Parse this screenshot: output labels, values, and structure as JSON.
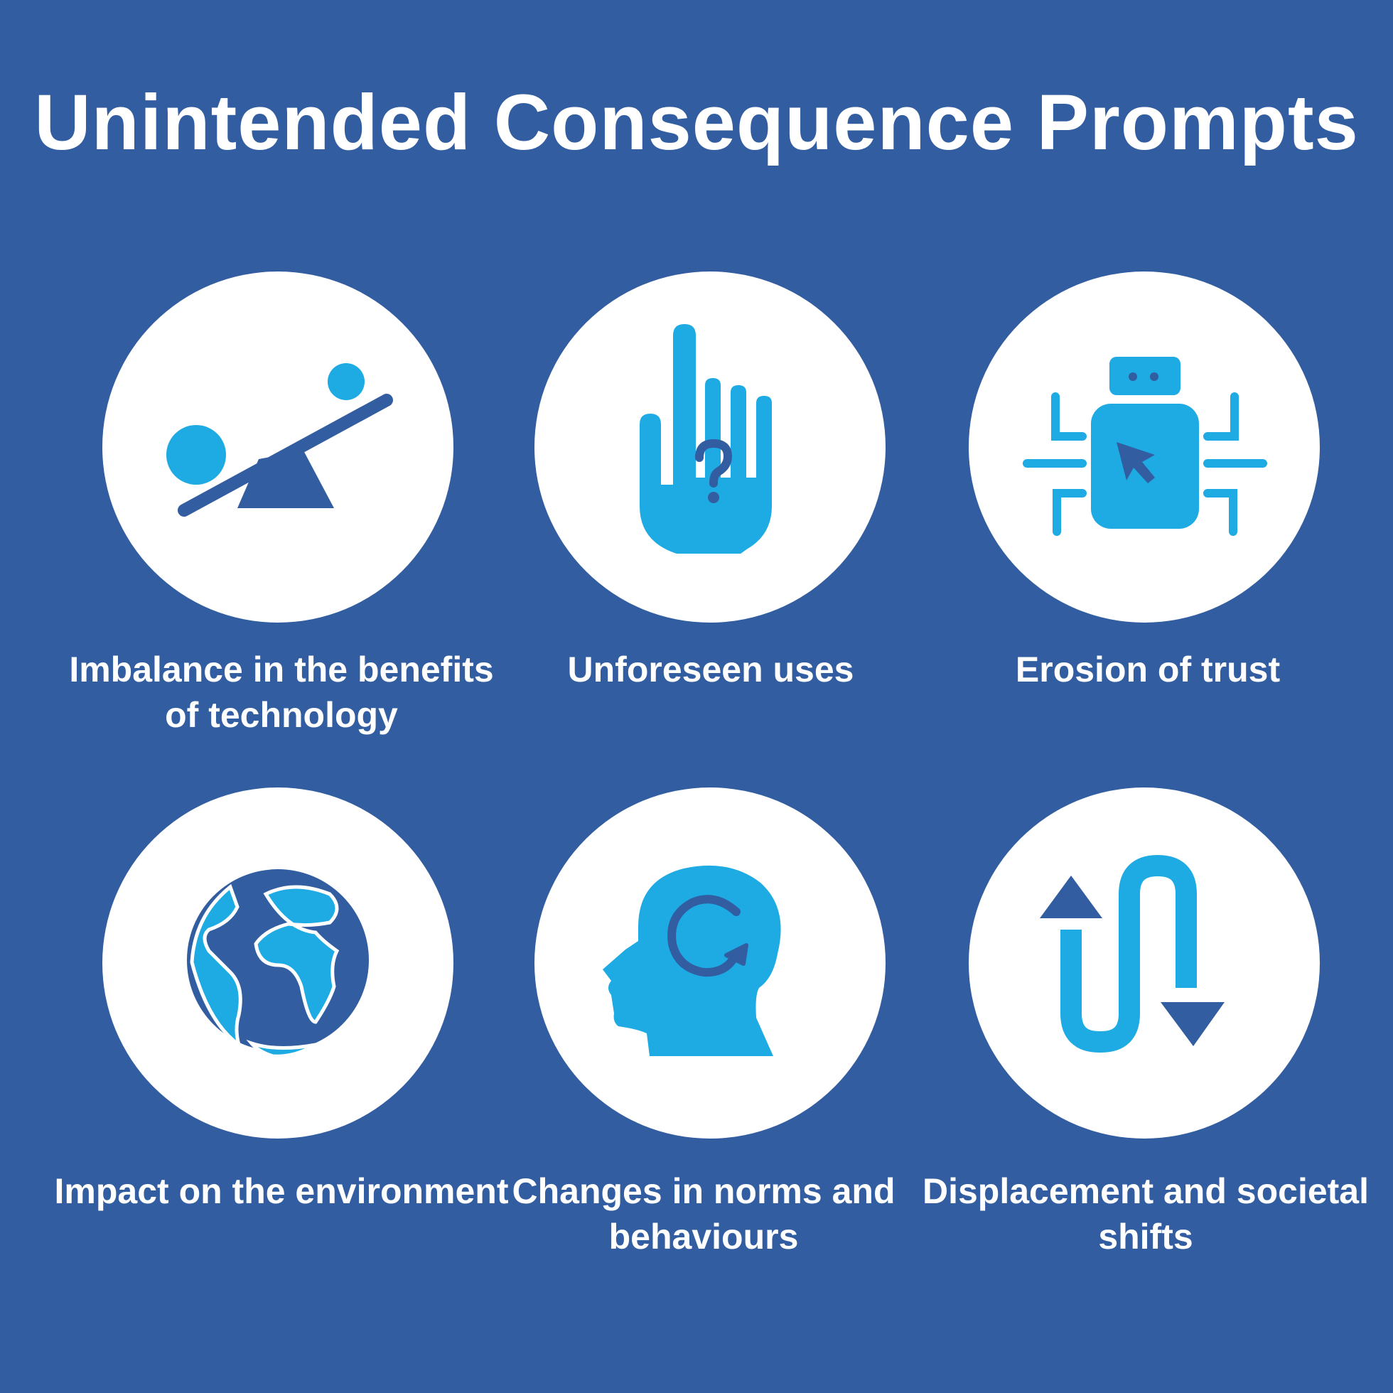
{
  "title": "Unintended Consequence Prompts",
  "colors": {
    "background": "#325da1",
    "circle": "#ffffff",
    "icon_light": "#1eaae2",
    "icon_dark": "#325da1"
  },
  "items": [
    {
      "icon": "seesaw-icon",
      "label": "Imbalance in the benefits of technology"
    },
    {
      "icon": "hand-question-icon",
      "label": "Unforeseen uses"
    },
    {
      "icon": "robot-cursor-icon",
      "label": "Erosion of trust"
    },
    {
      "icon": "globe-icon",
      "label": "Impact on the environment"
    },
    {
      "icon": "head-cycle-icon",
      "label": "Changes in norms and behaviours"
    },
    {
      "icon": "up-down-arrows-icon",
      "label": "Displacement and societal shifts"
    }
  ]
}
